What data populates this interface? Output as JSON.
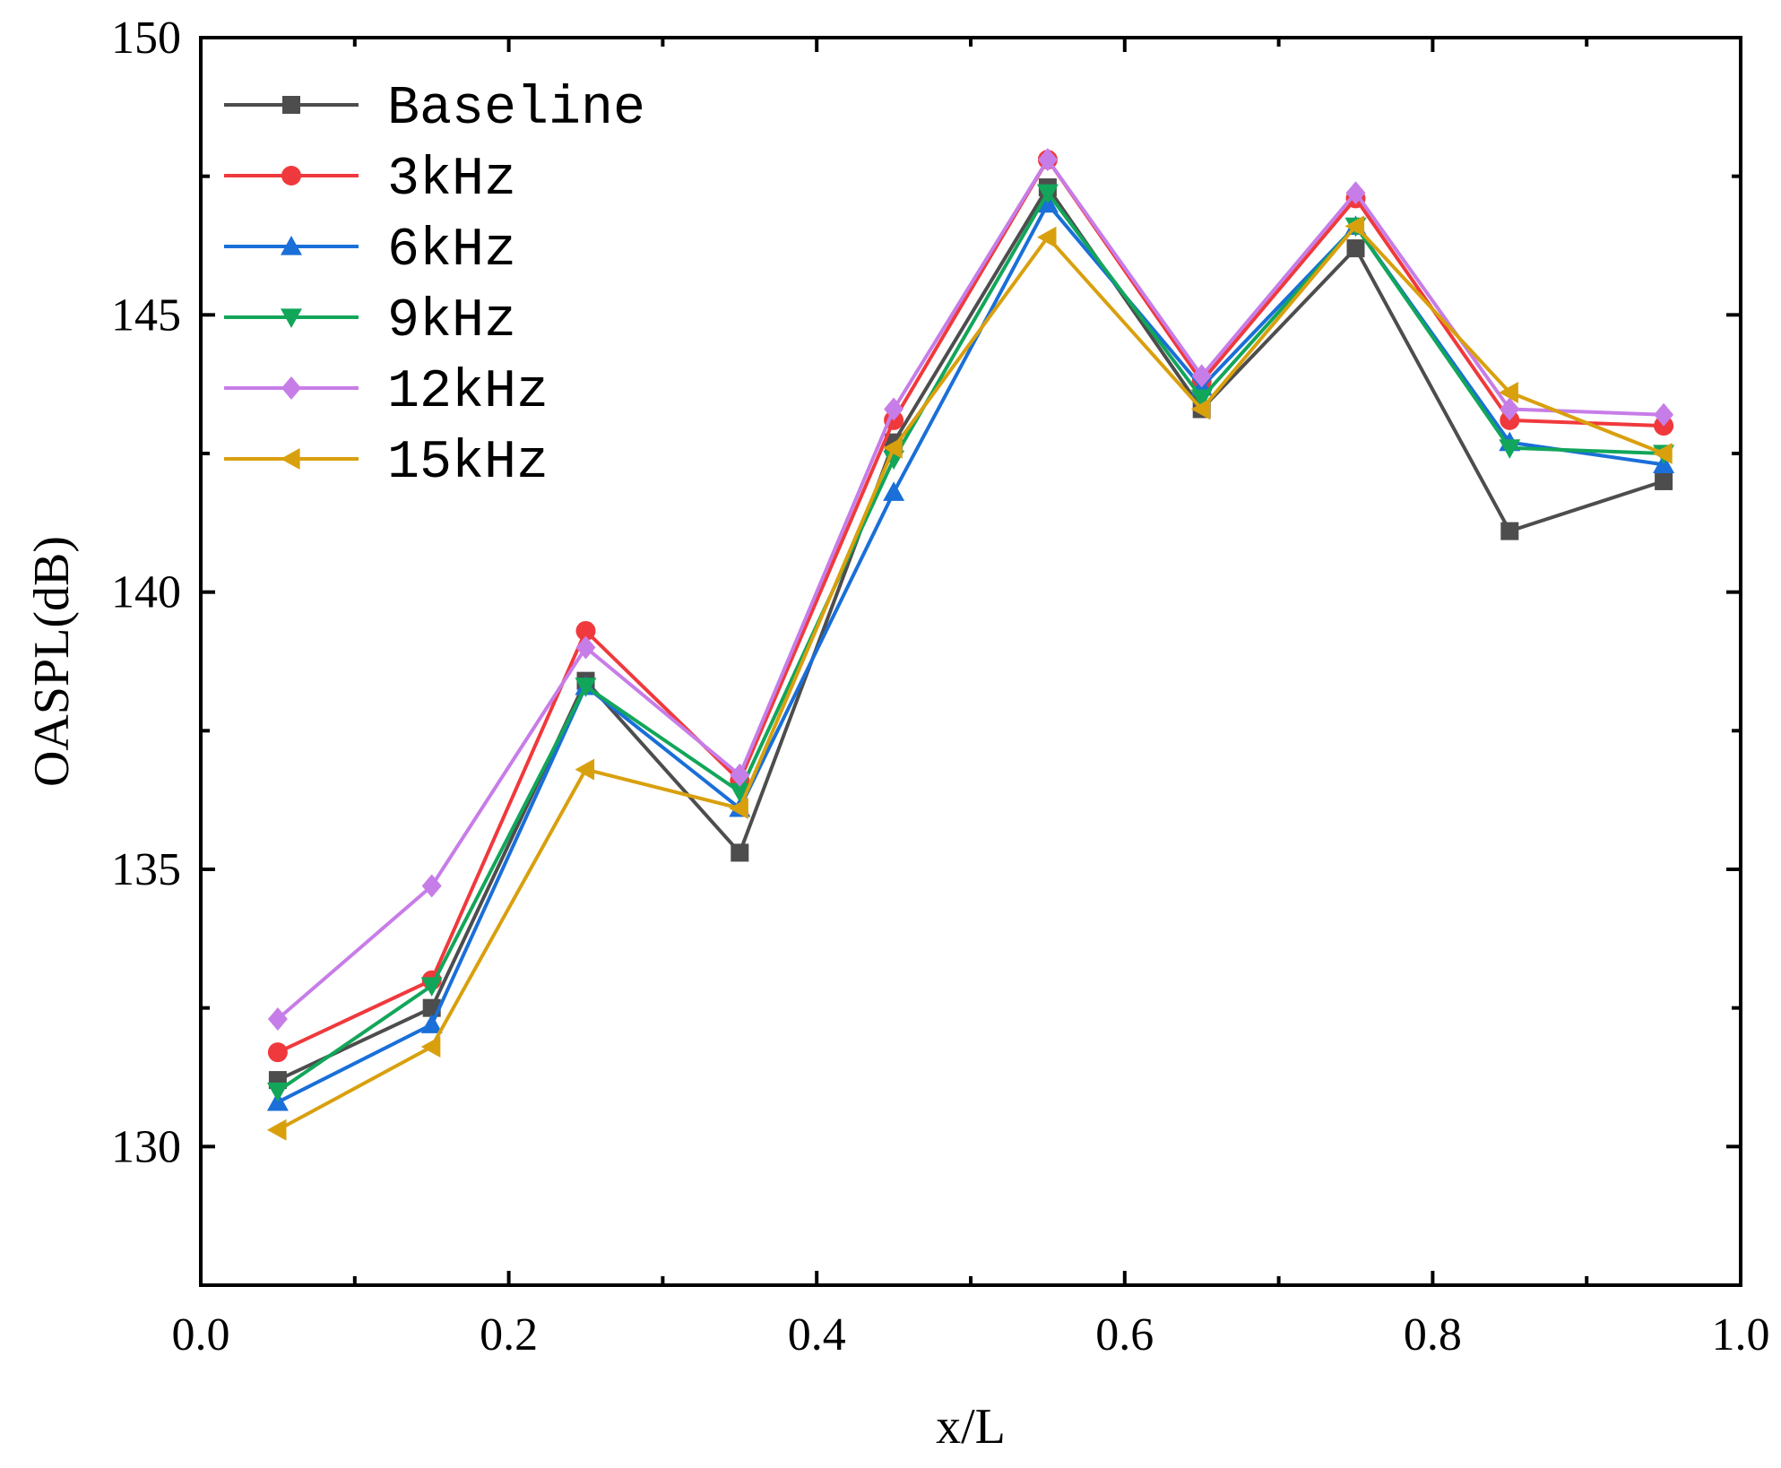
{
  "chart_data": {
    "type": "line",
    "title": "",
    "xlabel": "x/L",
    "ylabel": "OASPL(dB)",
    "xlim": [
      0.0,
      1.0
    ],
    "ylim": [
      127.5,
      150
    ],
    "x_ticks": [
      0.0,
      0.2,
      0.4,
      0.6,
      0.8,
      1.0
    ],
    "x_tick_labels": [
      "0.0",
      "0.2",
      "0.4",
      "0.6",
      "0.8",
      "1.0"
    ],
    "y_ticks": [
      130,
      135,
      140,
      145,
      150
    ],
    "y_tick_labels": [
      "130",
      "135",
      "140",
      "145",
      "150"
    ],
    "grid": false,
    "legend_position": "top-left",
    "x": [
      0.05,
      0.15,
      0.25,
      0.35,
      0.45,
      0.55,
      0.65,
      0.75,
      0.85,
      0.95
    ],
    "series": [
      {
        "name": "Baseline",
        "color": "#4d4d4d",
        "marker": "square",
        "values": [
          131.2,
          132.5,
          138.4,
          135.3,
          142.7,
          147.3,
          143.3,
          146.2,
          141.1,
          142.0
        ]
      },
      {
        "name": "3kHz",
        "color": "#f0393c",
        "marker": "circle",
        "values": [
          131.7,
          133.0,
          139.3,
          136.6,
          143.1,
          147.8,
          143.8,
          147.1,
          143.1,
          143.0
        ]
      },
      {
        "name": "6kHz",
        "color": "#1a6fd8",
        "marker": "triangle-up",
        "values": [
          130.8,
          132.2,
          138.3,
          136.1,
          141.8,
          147.0,
          143.7,
          146.6,
          142.7,
          142.3
        ]
      },
      {
        "name": "9kHz",
        "color": "#12a65a",
        "marker": "triangle-down",
        "values": [
          131.0,
          132.9,
          138.3,
          136.4,
          142.4,
          147.2,
          143.5,
          146.6,
          142.6,
          142.5
        ]
      },
      {
        "name": "12kHz",
        "color": "#c77de8",
        "marker": "diamond",
        "values": [
          132.3,
          134.7,
          139.0,
          136.7,
          143.3,
          147.8,
          143.9,
          147.2,
          143.3,
          143.2
        ]
      },
      {
        "name": "15kHz",
        "color": "#d9a00e",
        "marker": "triangle-left",
        "values": [
          130.3,
          131.8,
          136.8,
          136.1,
          142.6,
          146.4,
          143.3,
          146.6,
          143.6,
          142.5
        ]
      }
    ]
  }
}
